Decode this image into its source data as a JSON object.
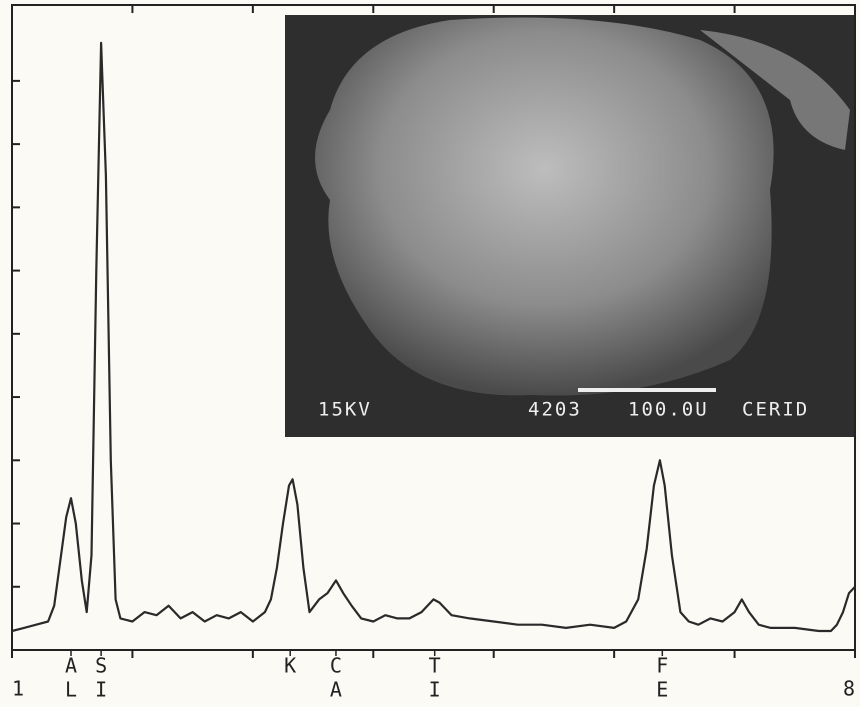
{
  "chart_data": {
    "type": "line",
    "x": [
      1.0,
      1.1,
      1.2,
      1.3,
      1.35,
      1.4,
      1.45,
      1.49,
      1.53,
      1.58,
      1.62,
      1.66,
      1.7,
      1.74,
      1.78,
      1.82,
      1.86,
      1.9,
      2.0,
      2.1,
      2.2,
      2.3,
      2.4,
      2.5,
      2.6,
      2.7,
      2.8,
      2.9,
      3.0,
      3.1,
      3.15,
      3.2,
      3.25,
      3.3,
      3.33,
      3.37,
      3.42,
      3.47,
      3.55,
      3.62,
      3.69,
      3.75,
      3.82,
      3.9,
      4.0,
      4.1,
      4.2,
      4.3,
      4.4,
      4.5,
      4.55,
      4.65,
      4.8,
      5.0,
      5.2,
      5.4,
      5.6,
      5.8,
      6.0,
      6.1,
      6.2,
      6.27,
      6.33,
      6.38,
      6.42,
      6.48,
      6.55,
      6.62,
      6.7,
      6.8,
      6.9,
      7.0,
      7.06,
      7.12,
      7.2,
      7.3,
      7.5,
      7.7,
      7.8,
      7.85,
      7.9,
      7.95,
      8.0
    ],
    "series": [
      {
        "color": "#2a2a2a",
        "values": [
          0.3,
          0.35,
          0.4,
          0.45,
          0.7,
          1.4,
          2.1,
          2.4,
          2.0,
          1.1,
          0.6,
          1.5,
          6.0,
          9.6,
          7.5,
          3.0,
          0.8,
          0.5,
          0.45,
          0.6,
          0.55,
          0.7,
          0.5,
          0.6,
          0.45,
          0.55,
          0.5,
          0.6,
          0.45,
          0.6,
          0.8,
          1.3,
          2.0,
          2.6,
          2.7,
          2.3,
          1.3,
          0.6,
          0.8,
          0.9,
          1.1,
          0.9,
          0.7,
          0.5,
          0.45,
          0.55,
          0.5,
          0.5,
          0.6,
          0.8,
          0.75,
          0.55,
          0.5,
          0.45,
          0.4,
          0.4,
          0.35,
          0.4,
          0.35,
          0.45,
          0.8,
          1.6,
          2.6,
          3.0,
          2.6,
          1.5,
          0.6,
          0.45,
          0.4,
          0.5,
          0.45,
          0.6,
          0.8,
          0.6,
          0.4,
          0.35,
          0.35,
          0.3,
          0.3,
          0.4,
          0.6,
          0.9,
          1.0
        ]
      }
    ],
    "xlim": [
      1,
      8
    ],
    "ylim": [
      0,
      10.2
    ],
    "xticks": [
      1,
      8
    ],
    "x_minor_ticks": [
      2,
      3,
      4,
      5,
      6,
      7
    ],
    "yticks": [
      1,
      2,
      3,
      4,
      5,
      6,
      7,
      8,
      9
    ],
    "annotations": [
      {
        "x": 1.49,
        "lines": [
          "A",
          "L"
        ]
      },
      {
        "x": 1.74,
        "lines": [
          "S",
          "I"
        ]
      },
      {
        "x": 3.31,
        "lines": [
          "K"
        ]
      },
      {
        "x": 3.69,
        "lines": [
          "C",
          "A"
        ]
      },
      {
        "x": 4.51,
        "lines": [
          "T",
          "I"
        ]
      },
      {
        "x": 6.4,
        "lines": [
          "F",
          "E"
        ]
      }
    ]
  },
  "inset": {
    "voltage": "15KV",
    "code": "4203",
    "scale": "100.0U",
    "lab": "CERID"
  }
}
